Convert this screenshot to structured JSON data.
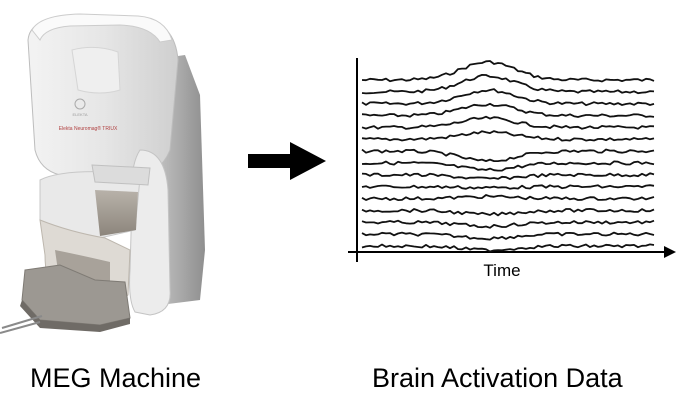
{
  "machine": {
    "icon": "meg-machine-illustration",
    "caption": "MEG Machine",
    "brand_text": "ELEKTA",
    "model_text": "Elekta Neuromag® TRIUX"
  },
  "flow": {
    "icon": "right-arrow-icon"
  },
  "plot": {
    "caption": "Brain Activation Data",
    "xlabel": "Time",
    "trace_count": 15
  }
}
